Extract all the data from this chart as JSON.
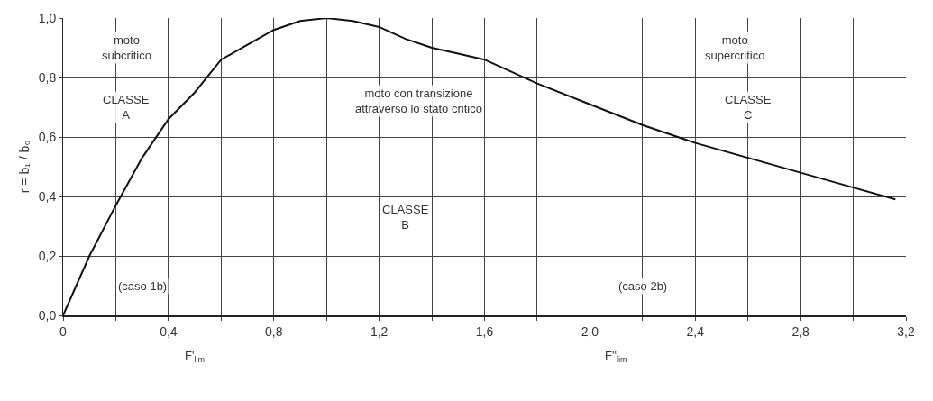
{
  "chart_data": {
    "type": "line",
    "ylabel": "r = b₁ / b₀",
    "x": [
      0,
      0.1,
      0.2,
      0.3,
      0.4,
      0.5,
      0.6,
      0.7,
      0.8,
      0.9,
      1.0,
      1.1,
      1.2,
      1.3,
      1.4,
      1.5,
      1.6,
      1.8,
      2.0,
      2.2,
      2.4,
      2.6,
      2.8,
      3.0,
      3.16
    ],
    "series": [
      {
        "color": "#111111",
        "values": [
          0,
          0.2,
          0.37,
          0.53,
          0.66,
          0.75,
          0.86,
          0.91,
          0.96,
          0.99,
          1.0,
          0.99,
          0.97,
          0.93,
          0.9,
          0.88,
          0.86,
          0.78,
          0.71,
          0.64,
          0.58,
          0.53,
          0.48,
          0.43,
          0.39
        ]
      }
    ],
    "xlim": [
      0,
      3.2
    ],
    "xticks": [
      {
        "value": 0,
        "label": "0"
      },
      {
        "value": 0.2,
        "label": null
      },
      {
        "value": 0.4,
        "label": "0,4"
      },
      {
        "value": 0.6,
        "label": null
      },
      {
        "value": 0.8,
        "label": "0,8"
      },
      {
        "value": 1.0,
        "label": null
      },
      {
        "value": 1.2,
        "label": "1,2"
      },
      {
        "value": 1.4,
        "label": null
      },
      {
        "value": 1.6,
        "label": "1,6"
      },
      {
        "value": 1.8,
        "label": null
      },
      {
        "value": 2.0,
        "label": "2,0"
      },
      {
        "value": 2.2,
        "label": null
      },
      {
        "value": 2.4,
        "label": "2,4"
      },
      {
        "value": 2.6,
        "label": null
      },
      {
        "value": 2.8,
        "label": "2,8"
      },
      {
        "value": 3.0,
        "label": null
      },
      {
        "value": 3.2,
        "label": "3,2"
      }
    ],
    "ylim": [
      0,
      1
    ],
    "yticks": [
      {
        "value": 0,
        "label": "0,0"
      },
      {
        "value": 0.2,
        "label": "0,2"
      },
      {
        "value": 0.4,
        "label": "0,4"
      },
      {
        "value": 0.6,
        "label": "0,6"
      },
      {
        "value": 0.8,
        "label": "0,8"
      },
      {
        "value": 1,
        "label": "1,0"
      }
    ],
    "grid": true,
    "marker": "none",
    "line_style": "solid",
    "annotations": [
      "moto\nsubcritico",
      "CLASSE\nA",
      "moto con transizione\nattraverso lo stato critico",
      "CLASSE\nB",
      "(caso 1b)",
      "moto\nsupercritico",
      "CLASSE\nC",
      "(caso 2b)",
      "F'$_{lim}$",
      "F''$_{lim}$"
    ]
  }
}
